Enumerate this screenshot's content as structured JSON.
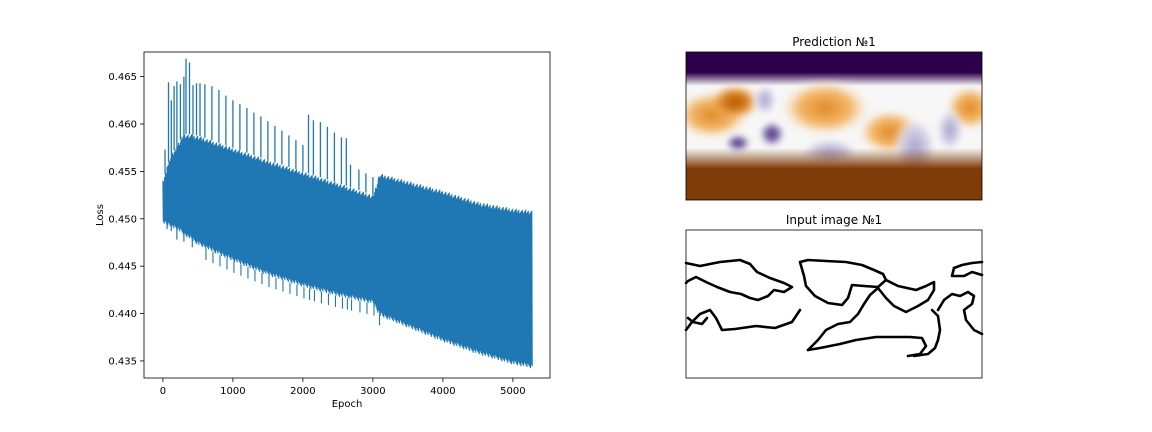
{
  "chart_data": [
    {
      "type": "line",
      "xlabel": "Epoch",
      "ylabel": "Loss",
      "xlim": [
        -270,
        5530
      ],
      "ylim": [
        0.4332,
        0.4676
      ],
      "xticks": [
        0,
        1000,
        2000,
        3000,
        4000,
        5000
      ],
      "xtick_labels": [
        "0",
        "1000",
        "2000",
        "3000",
        "4000",
        "5000"
      ],
      "yticks": [
        0.435,
        0.44,
        0.445,
        0.45,
        0.455,
        0.46,
        0.465
      ],
      "ytick_labels": [
        "0.435",
        "0.440",
        "0.445",
        "0.450",
        "0.455",
        "0.460",
        "0.465"
      ],
      "grid": false,
      "color": "#1f77b4",
      "series": [
        {
          "values": "oscillating loss between a lower and upper envelope",
          "lower_envelope": [
            [
              0,
              0.4495
            ],
            [
              200,
              0.4488
            ],
            [
              500,
              0.4472
            ],
            [
              1000,
              0.4455
            ],
            [
              1500,
              0.444
            ],
            [
              2000,
              0.4428
            ],
            [
              2500,
              0.4418
            ],
            [
              3000,
              0.441
            ],
            [
              3100,
              0.4397
            ],
            [
              3500,
              0.4385
            ],
            [
              4000,
              0.437
            ],
            [
              4500,
              0.4357
            ],
            [
              5000,
              0.4346
            ],
            [
              5280,
              0.4342
            ]
          ],
          "upper_envelope": [
            [
              0,
              0.454
            ],
            [
              100,
              0.4565
            ],
            [
              300,
              0.459
            ],
            [
              500,
              0.4588
            ],
            [
              1000,
              0.4575
            ],
            [
              1500,
              0.4562
            ],
            [
              2000,
              0.455
            ],
            [
              2500,
              0.4538
            ],
            [
              3000,
              0.4525
            ],
            [
              3100,
              0.4548
            ],
            [
              3500,
              0.454
            ],
            [
              4000,
              0.453
            ],
            [
              4500,
              0.4518
            ],
            [
              5000,
              0.4511
            ],
            [
              5280,
              0.4509
            ]
          ],
          "spikes": [
            [
              30,
              0.4573
            ],
            [
              80,
              0.4644
            ],
            [
              120,
              0.4625
            ],
            [
              160,
              0.464
            ],
            [
              200,
              0.4645
            ],
            [
              250,
              0.4642
            ],
            [
              300,
              0.465
            ],
            [
              330,
              0.4669
            ],
            [
              380,
              0.4665
            ],
            [
              430,
              0.4641
            ],
            [
              480,
              0.4643
            ],
            [
              530,
              0.4643
            ],
            [
              600,
              0.4642
            ],
            [
              700,
              0.464
            ],
            [
              800,
              0.4636
            ],
            [
              900,
              0.463
            ],
            [
              1000,
              0.4625
            ],
            [
              1100,
              0.4621
            ],
            [
              1200,
              0.4617
            ],
            [
              1300,
              0.4612
            ],
            [
              1400,
              0.4608
            ],
            [
              1500,
              0.4603
            ],
            [
              1600,
              0.4598
            ],
            [
              1700,
              0.4593
            ],
            [
              1800,
              0.4588
            ],
            [
              1900,
              0.4583
            ],
            [
              2000,
              0.4578
            ],
            [
              2080,
              0.461
            ],
            [
              2150,
              0.4604
            ],
            [
              2250,
              0.4602
            ],
            [
              2350,
              0.4597
            ],
            [
              2450,
              0.4591
            ],
            [
              2550,
              0.4586
            ],
            [
              2620,
              0.4585
            ],
            [
              2680,
              0.4557
            ],
            [
              2800,
              0.4552
            ],
            [
              2900,
              0.4548
            ],
            [
              3000,
              0.4544
            ],
            [
              3080,
              0.454
            ]
          ]
        }
      ]
    },
    {
      "type": "heatmap",
      "title": "Prediction №1",
      "colormap": "PuOr",
      "colors": [
        "#2d004b",
        "#7f3b08"
      ]
    },
    {
      "type": "heatmap",
      "title": "Input image №1",
      "colors": [
        "#ffffff",
        "#000000"
      ]
    }
  ]
}
